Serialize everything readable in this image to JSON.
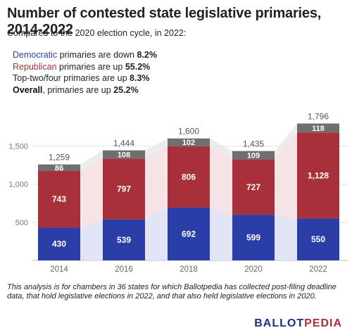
{
  "title": "Number of contested state legislative primaries, 2014-2022",
  "subtitle": "Compared to the 2020 election cycle, in 2022:",
  "notes": [
    {
      "label": "Democratic",
      "rest": " primaries are down ",
      "value": "8.2%"
    },
    {
      "label": "Republican",
      "rest": " primaries are up ",
      "value": "55.2%"
    },
    {
      "label": "Top-two/four primaries are up ",
      "value": "8.3%"
    },
    {
      "label": "Overall",
      "rest": ", primaries are up ",
      "value": "25.2%"
    }
  ],
  "footnote": "This analysis is for chambers in 36 states for which Ballotpedia has collected post-filing deadline data, that hold legislative elections in 2022, and that also held legislative elections in 2020.",
  "brand": {
    "part1": "BALLOT",
    "part2": "PEDIA"
  },
  "colors": {
    "democratic": "#2b3ea8",
    "republican": "#a8303a",
    "top_two": "#6f6f6f",
    "grid": "#e3e3e3"
  },
  "chart_data": {
    "type": "bar",
    "stacked": true,
    "categories": [
      "2014",
      "2016",
      "2018",
      "2020",
      "2022"
    ],
    "series": [
      {
        "name": "Democratic",
        "values": [
          430,
          539,
          692,
          599,
          550
        ],
        "color": "#2b3ea8"
      },
      {
        "name": "Republican",
        "values": [
          743,
          797,
          806,
          727,
          1128
        ],
        "color": "#a8303a"
      },
      {
        "name": "Top-two/four",
        "values": [
          86,
          108,
          102,
          109,
          118
        ],
        "color": "#6f6f6f"
      }
    ],
    "totals": [
      1259,
      1444,
      1600,
      1435,
      1796
    ],
    "y_ticks": [
      "500",
      "1,000",
      "1,500"
    ],
    "y_tick_values": [
      500,
      1000,
      1500
    ],
    "ylim": [
      0,
      1900
    ],
    "grid": true,
    "legend": "none",
    "xlabel": "",
    "ylabel": ""
  }
}
